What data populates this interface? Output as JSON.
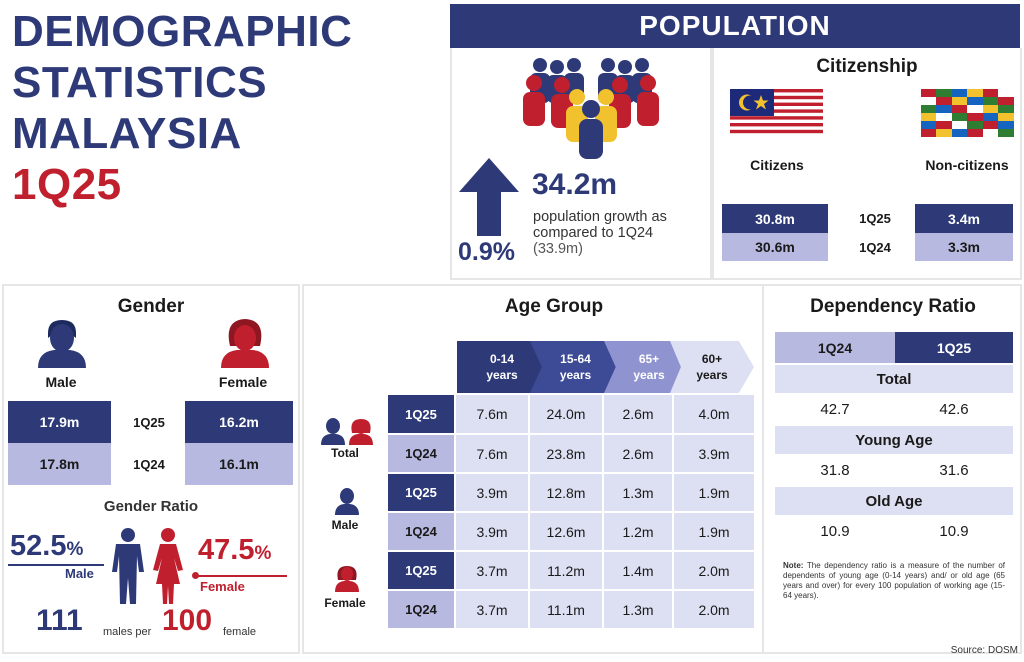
{
  "title": {
    "line1": "DEMOGRAPHIC",
    "line2": "STATISTICS",
    "line3": "MALAYSIA",
    "quarter": "1Q25"
  },
  "population": {
    "header": "POPULATION",
    "total": "34.2m",
    "growth_pct": "0.9%",
    "growth_text_1": "population growth as",
    "growth_text_2": "compared to 1Q24",
    "growth_text_3": "(33.9m)"
  },
  "citizenship": {
    "title": "Citizenship",
    "citizens_label": "Citizens",
    "noncitizens_label": "Non-citizens",
    "rows": [
      {
        "quarter": "1Q25",
        "citizens": "30.8m",
        "noncitizens": "3.4m"
      },
      {
        "quarter": "1Q24",
        "citizens": "30.6m",
        "noncitizens": "3.3m"
      }
    ]
  },
  "gender": {
    "title": "Gender",
    "male_label": "Male",
    "female_label": "Female",
    "rows": [
      {
        "quarter": "1Q25",
        "male": "17.9m",
        "female": "16.2m"
      },
      {
        "quarter": "1Q24",
        "male": "17.8m",
        "female": "16.1m"
      }
    ],
    "ratio_title": "Gender Ratio",
    "male_pct": "52.5",
    "female_pct": "47.5",
    "pct_sign": "%",
    "ratio_male_label": "Male",
    "ratio_female_label": "Female",
    "males_num": "111",
    "males_per": "males per",
    "females_num": "100",
    "female_word": "female"
  },
  "age_group": {
    "title": "Age Group",
    "headers": [
      {
        "range": "0-14",
        "unit": "years"
      },
      {
        "range": "15-64",
        "unit": "years"
      },
      {
        "range": "65+",
        "unit": "years"
      },
      {
        "range": "60+",
        "unit": "years"
      }
    ],
    "groups": [
      {
        "label": "Total",
        "rows": [
          {
            "quarter": "1Q25",
            "values": [
              "7.6m",
              "24.0m",
              "2.6m",
              "4.0m"
            ]
          },
          {
            "quarter": "1Q24",
            "values": [
              "7.6m",
              "23.8m",
              "2.6m",
              "3.9m"
            ]
          }
        ]
      },
      {
        "label": "Male",
        "rows": [
          {
            "quarter": "1Q25",
            "values": [
              "3.9m",
              "12.8m",
              "1.3m",
              "1.9m"
            ]
          },
          {
            "quarter": "1Q24",
            "values": [
              "3.9m",
              "12.6m",
              "1.2m",
              "1.9m"
            ]
          }
        ]
      },
      {
        "label": "Female",
        "rows": [
          {
            "quarter": "1Q25",
            "values": [
              "3.7m",
              "11.2m",
              "1.4m",
              "2.0m"
            ]
          },
          {
            "quarter": "1Q24",
            "values": [
              "3.7m",
              "11.1m",
              "1.3m",
              "2.0m"
            ]
          }
        ]
      }
    ]
  },
  "dependency": {
    "title": "Dependency Ratio",
    "col_1q24": "1Q24",
    "col_1q25": "1Q25",
    "sections": [
      {
        "label": "Total",
        "v1q24": "42.7",
        "v1q25": "42.6"
      },
      {
        "label": "Young Age",
        "v1q24": "31.8",
        "v1q25": "31.6"
      },
      {
        "label": "Old Age",
        "v1q24": "10.9",
        "v1q25": "10.9"
      }
    ],
    "note_label": "Note:",
    "note_text": "The dependency ratio is a measure of the number of dependents of young age (0-14 years) and/ or old age (65 years and over) for every 100 population of working age (15-64 years)."
  },
  "source": "Source: DOSM",
  "colors": {
    "navy": "#2e3a78",
    "lavender": "#b7b9e0",
    "pale": "#dde0f2",
    "red": "#c0202e",
    "yellow": "#f2c12e"
  }
}
